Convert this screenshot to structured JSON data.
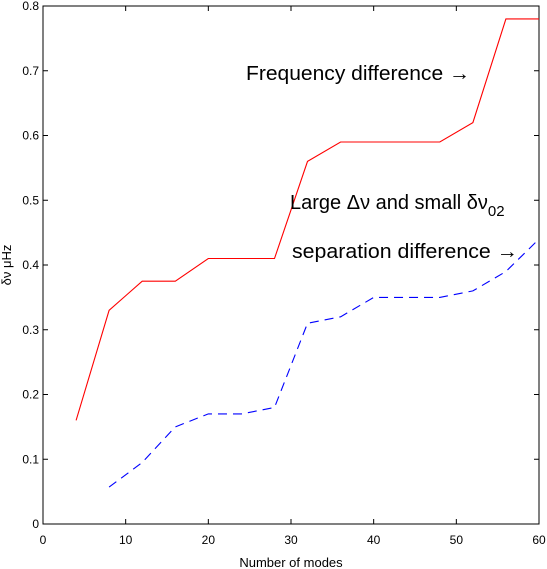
{
  "chart_data": {
    "type": "line",
    "title": "",
    "xlabel": "Number of modes",
    "ylabel": "δν μHz",
    "xlim": [
      0,
      60
    ],
    "ylim": [
      0,
      0.8
    ],
    "xticks": [
      0,
      10,
      20,
      30,
      40,
      50,
      60
    ],
    "yticks": [
      0,
      0.1,
      0.2,
      0.3,
      0.4,
      0.5,
      0.6,
      0.7,
      0.8
    ],
    "xtick_labels": [
      "0",
      "10",
      "20",
      "30",
      "40",
      "50",
      "60"
    ],
    "ytick_labels": [
      "0",
      "0.1",
      "0.2",
      "0.3",
      "0.4",
      "0.5",
      "0.6",
      "0.7",
      "0.8"
    ],
    "grid": false,
    "legend": "none",
    "series": [
      {
        "color": "#ff0000",
        "style": "solid",
        "x": [
          4,
          8,
          12,
          16,
          20,
          24,
          28,
          32,
          36,
          40,
          44,
          48,
          52,
          56,
          60
        ],
        "y": [
          0.16,
          0.33,
          0.375,
          0.375,
          0.41,
          0.41,
          0.41,
          0.56,
          0.59,
          0.59,
          0.59,
          0.59,
          0.62,
          0.78,
          0.78
        ]
      },
      {
        "color": "#0000ff",
        "style": "dashed",
        "x": [
          8,
          12,
          16,
          20,
          24,
          28,
          32,
          36,
          40,
          44,
          48,
          52,
          56,
          60
        ],
        "y": [
          0.057,
          0.095,
          0.15,
          0.17,
          0.17,
          0.18,
          0.31,
          0.32,
          0.35,
          0.35,
          0.35,
          0.36,
          0.39,
          0.44
        ]
      }
    ],
    "annotations": {
      "frequency": "Frequency difference →",
      "large_line1_prefix": "Large Δν and small δν",
      "large_line1_sub": "02",
      "large_line2": "separation difference →"
    }
  }
}
